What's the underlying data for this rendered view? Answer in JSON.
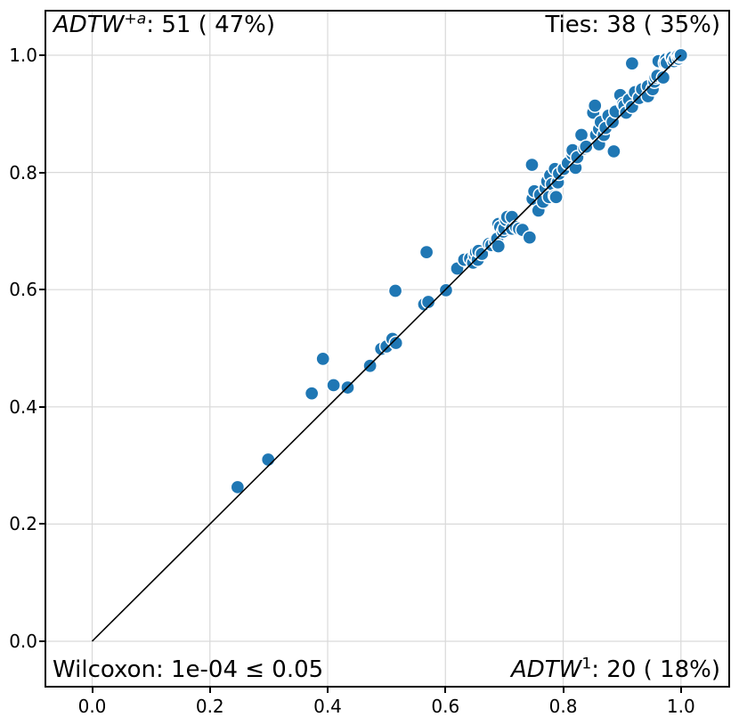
{
  "figure": {
    "background": "#ffffff",
    "annotations": {
      "top_left": {
        "method_italic": "ADTW",
        "superscript": "+a",
        "rest": ": 51 ( 47%)"
      },
      "top_right": {
        "text": "Ties: 38 ( 35%)"
      },
      "bottom_left": {
        "text": "Wilcoxon: 1e-04 ≤ 0.05"
      },
      "bottom_right": {
        "method_italic": "ADTW",
        "superscript": "1",
        "rest": ": 20 ( 18%)"
      }
    }
  },
  "chart_data": {
    "type": "scatter",
    "title": "",
    "xlabel": "",
    "ylabel": "",
    "x_axis_method": "ADTW^1",
    "y_axis_method": "ADTW^+a",
    "stats": {
      "y_method_wins": 51,
      "y_method_win_pct": 47,
      "ties": 38,
      "ties_pct": 35,
      "x_method_wins": 20,
      "x_method_win_pct": 18,
      "wilcoxon_p": "1e-04",
      "alpha": "0.05"
    },
    "xlim": [
      -0.0779,
      1.0805
    ],
    "ylim": [
      -0.076,
      1.0745
    ],
    "x_ticks": [
      0.0,
      0.2,
      0.4,
      0.6,
      0.8,
      1.0
    ],
    "x_tick_labels": [
      "0.0",
      "0.2",
      "0.4",
      "0.6",
      "0.8",
      "1.0"
    ],
    "y_ticks": [
      0.0,
      0.2,
      0.4,
      0.6,
      0.8,
      1.0
    ],
    "y_tick_labels": [
      "0.0",
      "0.2",
      "0.4",
      "0.6",
      "0.8",
      "1.0"
    ],
    "grid": true,
    "grid_color": "#d9d9d9",
    "diagonal_line": {
      "from": [
        0,
        0
      ],
      "to": [
        1,
        1
      ],
      "color": "#000000",
      "width": 1.6
    },
    "marker": {
      "color": "#1f77b4",
      "edge_color": "#ffffff",
      "radius_px": 7.6,
      "edge_width": 1.5
    },
    "points": [
      [
        0.247,
        0.263
      ],
      [
        0.299,
        0.31
      ],
      [
        0.373,
        0.423
      ],
      [
        0.392,
        0.482
      ],
      [
        0.41,
        0.437
      ],
      [
        0.434,
        0.433
      ],
      [
        0.472,
        0.47
      ],
      [
        0.491,
        0.499
      ],
      [
        0.5,
        0.503
      ],
      [
        0.51,
        0.516
      ],
      [
        0.516,
        0.509
      ],
      [
        0.515,
        0.598
      ],
      [
        0.564,
        0.575
      ],
      [
        0.571,
        0.579
      ],
      [
        0.568,
        0.664
      ],
      [
        0.601,
        0.599
      ],
      [
        0.62,
        0.636
      ],
      [
        0.632,
        0.651
      ],
      [
        0.642,
        0.653
      ],
      [
        0.647,
        0.646
      ],
      [
        0.65,
        0.658
      ],
      [
        0.652,
        0.664
      ],
      [
        0.655,
        0.651
      ],
      [
        0.656,
        0.666
      ],
      [
        0.662,
        0.661
      ],
      [
        0.674,
        0.678
      ],
      [
        0.678,
        0.676
      ],
      [
        0.685,
        0.681
      ],
      [
        0.688,
        0.687
      ],
      [
        0.69,
        0.674
      ],
      [
        0.69,
        0.712
      ],
      [
        0.693,
        0.707
      ],
      [
        0.698,
        0.699
      ],
      [
        0.7,
        0.704
      ],
      [
        0.703,
        0.719
      ],
      [
        0.705,
        0.724
      ],
      [
        0.713,
        0.704
      ],
      [
        0.713,
        0.724
      ],
      [
        0.72,
        0.707
      ],
      [
        0.725,
        0.704
      ],
      [
        0.731,
        0.702
      ],
      [
        0.743,
        0.689
      ],
      [
        0.747,
        0.813
      ],
      [
        0.748,
        0.755
      ],
      [
        0.751,
        0.768
      ],
      [
        0.758,
        0.735
      ],
      [
        0.761,
        0.762
      ],
      [
        0.766,
        0.75
      ],
      [
        0.77,
        0.773
      ],
      [
        0.773,
        0.785
      ],
      [
        0.776,
        0.758
      ],
      [
        0.778,
        0.795
      ],
      [
        0.781,
        0.78
      ],
      [
        0.786,
        0.76
      ],
      [
        0.786,
        0.806
      ],
      [
        0.788,
        0.758
      ],
      [
        0.791,
        0.783
      ],
      [
        0.793,
        0.798
      ],
      [
        0.801,
        0.806
      ],
      [
        0.808,
        0.816
      ],
      [
        0.816,
        0.831
      ],
      [
        0.816,
        0.838
      ],
      [
        0.821,
        0.808
      ],
      [
        0.824,
        0.826
      ],
      [
        0.831,
        0.864
      ],
      [
        0.836,
        0.841
      ],
      [
        0.839,
        0.844
      ],
      [
        0.851,
        0.902
      ],
      [
        0.854,
        0.914
      ],
      [
        0.856,
        0.864
      ],
      [
        0.861,
        0.848
      ],
      [
        0.861,
        0.874
      ],
      [
        0.864,
        0.886
      ],
      [
        0.869,
        0.864
      ],
      [
        0.872,
        0.876
      ],
      [
        0.877,
        0.897
      ],
      [
        0.884,
        0.886
      ],
      [
        0.886,
        0.836
      ],
      [
        0.889,
        0.904
      ],
      [
        0.897,
        0.932
      ],
      [
        0.902,
        0.917
      ],
      [
        0.904,
        0.914
      ],
      [
        0.907,
        0.902
      ],
      [
        0.912,
        0.924
      ],
      [
        0.917,
        0.912
      ],
      [
        0.917,
        0.986
      ],
      [
        0.922,
        0.937
      ],
      [
        0.929,
        0.927
      ],
      [
        0.934,
        0.942
      ],
      [
        0.944,
        0.947
      ],
      [
        0.944,
        0.93
      ],
      [
        0.952,
        0.942
      ],
      [
        0.955,
        0.955
      ],
      [
        0.957,
        0.962
      ],
      [
        0.96,
        0.965
      ],
      [
        0.962,
        0.99
      ],
      [
        0.97,
        0.962
      ],
      [
        0.973,
        0.987
      ],
      [
        0.975,
        0.993
      ],
      [
        0.976,
        0.987
      ],
      [
        0.984,
        0.998
      ],
      [
        0.985,
        0.996
      ],
      [
        0.988,
        0.99
      ],
      [
        0.99,
        0.994
      ],
      [
        0.994,
        1.0
      ],
      [
        0.995,
        0.999
      ],
      [
        0.996,
        0.994
      ],
      [
        0.998,
        0.998
      ],
      [
        1.0,
        1.0
      ]
    ]
  }
}
